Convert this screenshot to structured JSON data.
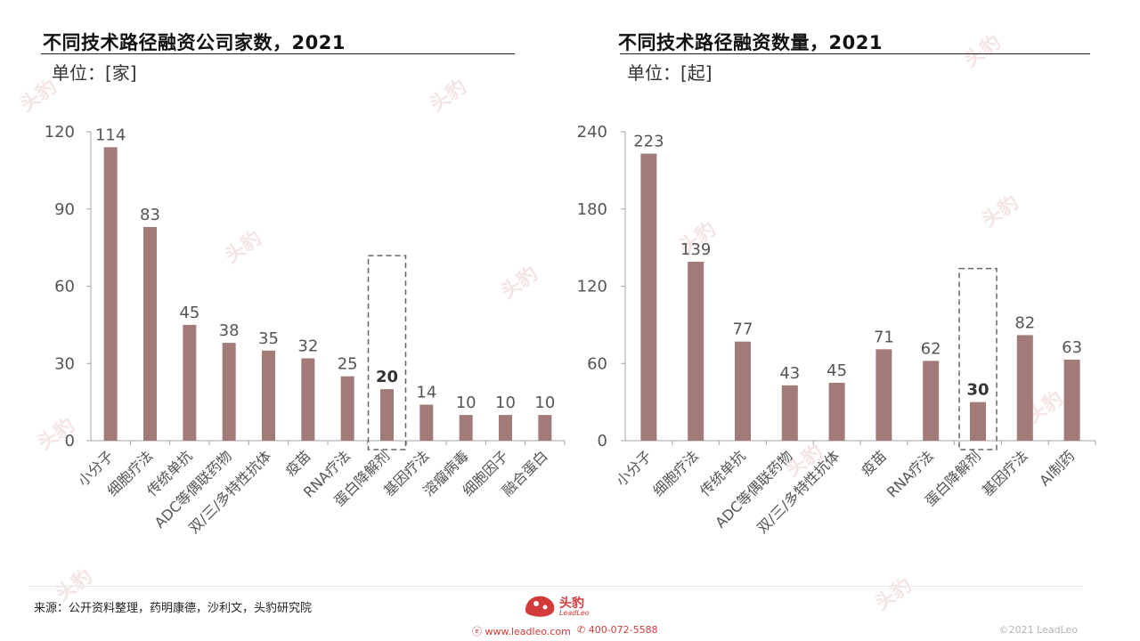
{
  "footer": {
    "source": "来源：公开资料整理，药明康德，沙利文，头豹研究院",
    "logo_text": "头豹",
    "logo_sub": "LeadLeo",
    "website": "www.leadleo.com",
    "phone": "400-072-5588",
    "copyright": "©2021 LeadLeo"
  },
  "colors": {
    "bar": "#a27b79",
    "axis": "#a6a6a6",
    "highlight_box": "#666666",
    "brand": "#d33b3b"
  },
  "chart_data": [
    {
      "type": "bar",
      "title": "不同技术路径融资公司家数，2021",
      "unit": "单位：[家]",
      "categories": [
        "小分子",
        "细胞疗法",
        "传统单抗",
        "ADC等偶联药物",
        "双/三/多特性抗体",
        "疫苗",
        "RNA疗法",
        "蛋白降解剂",
        "基因疗法",
        "溶瘤病毒",
        "细胞因子",
        "融合蛋白"
      ],
      "values": [
        114,
        83,
        45,
        38,
        35,
        32,
        25,
        20,
        14,
        10,
        10,
        10
      ],
      "yticks": [
        0,
        30,
        60,
        90,
        120
      ],
      "ylim": [
        0,
        120
      ],
      "highlight": "蛋白降解剂",
      "legend": "none"
    },
    {
      "type": "bar",
      "title": "不同技术路径融资数量，2021",
      "unit": "单位：[起]",
      "categories": [
        "小分子",
        "细胞疗法",
        "传统单抗",
        "ADC等偶联药物",
        "双/三/多特性抗体",
        "疫苗",
        "RNA疗法",
        "蛋白降解剂",
        "基因疗法",
        "AI制药"
      ],
      "values": [
        223,
        139,
        77,
        43,
        45,
        71,
        62,
        30,
        82,
        63
      ],
      "yticks": [
        0,
        60,
        120,
        180,
        240
      ],
      "ylim": [
        0,
        240
      ],
      "highlight": "蛋白降解剂",
      "legend": "none"
    }
  ]
}
